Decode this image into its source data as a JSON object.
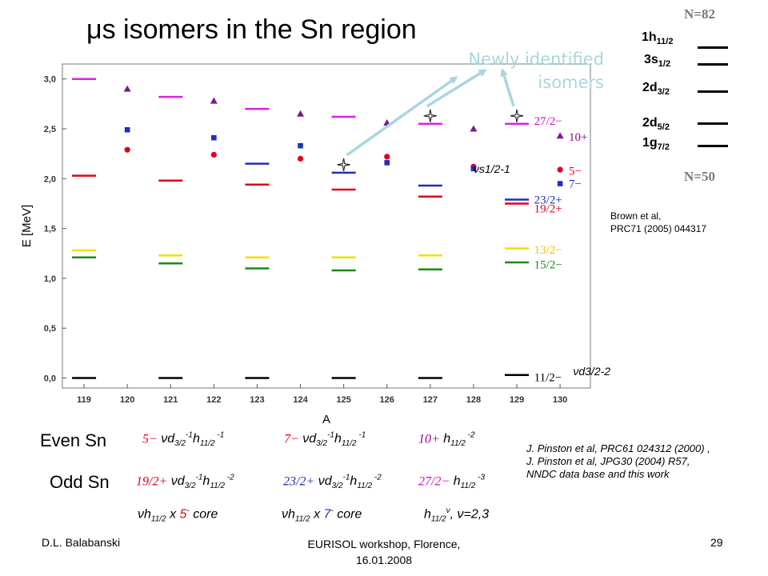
{
  "title": "μs isomers in the Sn region",
  "newly_label_line1": "Newly identified",
  "newly_label_line2": "isomers",
  "shell_diagram": {
    "top_label": "N=82",
    "bottom_label": "N=50",
    "orbitals": [
      {
        "name": "1h",
        "sub": "11/2"
      },
      {
        "name": "3s",
        "sub": "1/2"
      },
      {
        "name": "2d",
        "sub": "3/2"
      },
      {
        "name": "2d",
        "sub": "5/2"
      },
      {
        "name": "1g",
        "sub": "7/2"
      }
    ]
  },
  "brown_ref_line1": "Brown et al,",
  "brown_ref_line2": "PRC71 (2005) 044317",
  "pinston_ref_line1": "J. Pinston et al, PRC61 024312 (2000) ,",
  "pinston_ref_line2": "J. Pinston et al, JPG30 (2004) R57,",
  "pinston_ref_line3": "NNDC data base and this work",
  "even_label": "Even Sn",
  "odd_label": "Odd Sn",
  "even_cfg": [
    {
      "j": "5−",
      "color": "#e0001a",
      "text": "νd3/2-1h11/2-1"
    },
    {
      "j": "7−",
      "color": "#e0001a",
      "text": "νd3/2-1h11/2-1"
    },
    {
      "j": "10+",
      "color": "#8a0a8a",
      "text": "h11/2-2"
    }
  ],
  "odd_cfg": [
    {
      "j": "19/2+",
      "color": "#e0001a",
      "text": "νd3/2-1h11/2-2"
    },
    {
      "j": "23/2+",
      "color": "#1f2fbf",
      "text": "νd3/2-1h11/2-2"
    },
    {
      "j": "27/2−",
      "color": "#d010c0",
      "text": "h11/2-3"
    }
  ],
  "bottom_cfg": [
    "νh11/2 x 5- core",
    "νh11/2 x 7- core",
    "h11/2ν, ν=2,3"
  ],
  "footer": {
    "author": "D.L. Balabanski",
    "event_line1": "EURISOL workshop, Florence,",
    "event_line2": "16.01.2008",
    "page": "29"
  },
  "chart_data": {
    "type": "scatter",
    "xlabel": "A",
    "ylabel": "E [MeV]",
    "xlim": [
      118.5,
      130.7
    ],
    "ylim": [
      -0.1,
      3.15
    ],
    "x_ticks": [
      119,
      120,
      121,
      122,
      123,
      124,
      125,
      126,
      127,
      128,
      129,
      130
    ],
    "y_ticks": [
      "0,0",
      "0,5",
      "1,0",
      "1,5",
      "2,0",
      "2,5",
      "3,0"
    ],
    "grid": false,
    "level_colors": {
      "black": "#000000",
      "green": "#1a8a1a",
      "yellow": "#f0e000",
      "red": "#e0001a",
      "blue": "#1f2fbf",
      "magenta": "#e020e0"
    },
    "levels": [
      {
        "A": 119,
        "E": 0.0,
        "color": "black"
      },
      {
        "A": 121,
        "E": 0.0,
        "color": "black"
      },
      {
        "A": 123,
        "E": 0.0,
        "color": "black"
      },
      {
        "A": 125,
        "E": 0.0,
        "color": "black"
      },
      {
        "A": 127,
        "E": 0.0,
        "color": "black"
      },
      {
        "A": 129,
        "E": 0.03,
        "color": "black"
      },
      {
        "A": 119,
        "E": 1.21,
        "color": "green"
      },
      {
        "A": 121,
        "E": 1.15,
        "color": "green"
      },
      {
        "A": 123,
        "E": 1.1,
        "color": "green"
      },
      {
        "A": 125,
        "E": 1.08,
        "color": "green"
      },
      {
        "A": 127,
        "E": 1.09,
        "color": "green"
      },
      {
        "A": 129,
        "E": 1.16,
        "color": "green"
      },
      {
        "A": 119,
        "E": 1.28,
        "color": "yellow"
      },
      {
        "A": 121,
        "E": 1.23,
        "color": "yellow"
      },
      {
        "A": 123,
        "E": 1.21,
        "color": "yellow"
      },
      {
        "A": 125,
        "E": 1.21,
        "color": "yellow"
      },
      {
        "A": 127,
        "E": 1.23,
        "color": "yellow"
      },
      {
        "A": 129,
        "E": 1.3,
        "color": "yellow"
      },
      {
        "A": 119,
        "E": 2.03,
        "color": "red"
      },
      {
        "A": 121,
        "E": 1.98,
        "color": "red"
      },
      {
        "A": 123,
        "E": 1.94,
        "color": "red"
      },
      {
        "A": 125,
        "E": 1.89,
        "color": "red"
      },
      {
        "A": 127,
        "E": 1.82,
        "color": "red"
      },
      {
        "A": 129,
        "E": 1.75,
        "color": "red"
      },
      {
        "A": 123,
        "E": 2.15,
        "color": "blue"
      },
      {
        "A": 125,
        "E": 2.06,
        "color": "blue"
      },
      {
        "A": 127,
        "E": 1.93,
        "color": "blue"
      },
      {
        "A": 129,
        "E": 1.79,
        "color": "blue"
      },
      {
        "A": 119,
        "E": 3.0,
        "color": "magenta"
      },
      {
        "A": 121,
        "E": 2.82,
        "color": "magenta"
      },
      {
        "A": 123,
        "E": 2.7,
        "color": "magenta"
      },
      {
        "A": 125,
        "E": 2.62,
        "color": "magenta"
      },
      {
        "A": 127,
        "E": 2.55,
        "color": "magenta"
      },
      {
        "A": 129,
        "E": 2.55,
        "color": "magenta"
      }
    ],
    "points": [
      {
        "A": 120,
        "E": 2.29,
        "shape": "circle",
        "color": "red"
      },
      {
        "A": 122,
        "E": 2.24,
        "shape": "circle",
        "color": "red"
      },
      {
        "A": 124,
        "E": 2.2,
        "shape": "circle",
        "color": "red"
      },
      {
        "A": 126,
        "E": 2.22,
        "shape": "circle",
        "color": "red"
      },
      {
        "A": 128,
        "E": 2.12,
        "shape": "circle",
        "color": "red"
      },
      {
        "A": 130,
        "E": 2.09,
        "shape": "circle",
        "color": "red"
      },
      {
        "A": 120,
        "E": 2.49,
        "shape": "square",
        "color": "blue"
      },
      {
        "A": 122,
        "E": 2.41,
        "shape": "square",
        "color": "blue"
      },
      {
        "A": 124,
        "E": 2.33,
        "shape": "square",
        "color": "blue"
      },
      {
        "A": 126,
        "E": 2.16,
        "shape": "square",
        "color": "blue"
      },
      {
        "A": 128,
        "E": 2.1,
        "shape": "square",
        "color": "blue"
      },
      {
        "A": 130,
        "E": 1.95,
        "shape": "square",
        "color": "blue"
      },
      {
        "A": 120,
        "E": 2.9,
        "shape": "triangle",
        "color": "purple"
      },
      {
        "A": 122,
        "E": 2.78,
        "shape": "triangle",
        "color": "purple"
      },
      {
        "A": 124,
        "E": 2.65,
        "shape": "triangle",
        "color": "purple"
      },
      {
        "A": 126,
        "E": 2.56,
        "shape": "triangle",
        "color": "purple"
      },
      {
        "A": 128,
        "E": 2.5,
        "shape": "triangle",
        "color": "purple"
      },
      {
        "A": 130,
        "E": 2.43,
        "shape": "triangle",
        "color": "purple"
      }
    ],
    "point_colors": {
      "red": "#e0001a",
      "blue": "#1f2fbf",
      "purple": "#7a1a8a"
    },
    "new_isomers": [
      {
        "A": 125,
        "E": 2.14
      },
      {
        "A": 127,
        "E": 2.63
      },
      {
        "A": 129,
        "E": 2.63
      }
    ],
    "arrow_color": "#a9d6e0",
    "annotations": [
      {
        "text": "27/2−",
        "A": 129.4,
        "E": 2.58,
        "color": "#d010c0"
      },
      {
        "text": "10+",
        "A": 130.2,
        "E": 2.42,
        "color": "#8a0a8a"
      },
      {
        "text": "5−",
        "A": 130.2,
        "E": 2.08,
        "color": "#e0001a"
      },
      {
        "text": "7−",
        "A": 130.2,
        "E": 1.95,
        "color": "#1f2fbf"
      },
      {
        "text": "23/2+",
        "A": 129.4,
        "E": 1.79,
        "color": "#1f2fbf"
      },
      {
        "text": "19/2+",
        "A": 129.4,
        "E": 1.7,
        "color": "#e0001a"
      },
      {
        "text": "13/2−",
        "A": 129.4,
        "E": 1.29,
        "color": "#f0c000"
      },
      {
        "text": "15/2−",
        "A": 129.4,
        "E": 1.14,
        "color": "#1a8a1a"
      },
      {
        "text": "11/2−",
        "A": 129.4,
        "E": 0.01,
        "color": "#000000"
      }
    ],
    "orbital_labels": [
      {
        "text": "νs1/2-1",
        "A": 128.0,
        "E": 2.1
      },
      {
        "text": "νd3/2-2",
        "A": 130.3,
        "E": 0.07
      }
    ]
  }
}
